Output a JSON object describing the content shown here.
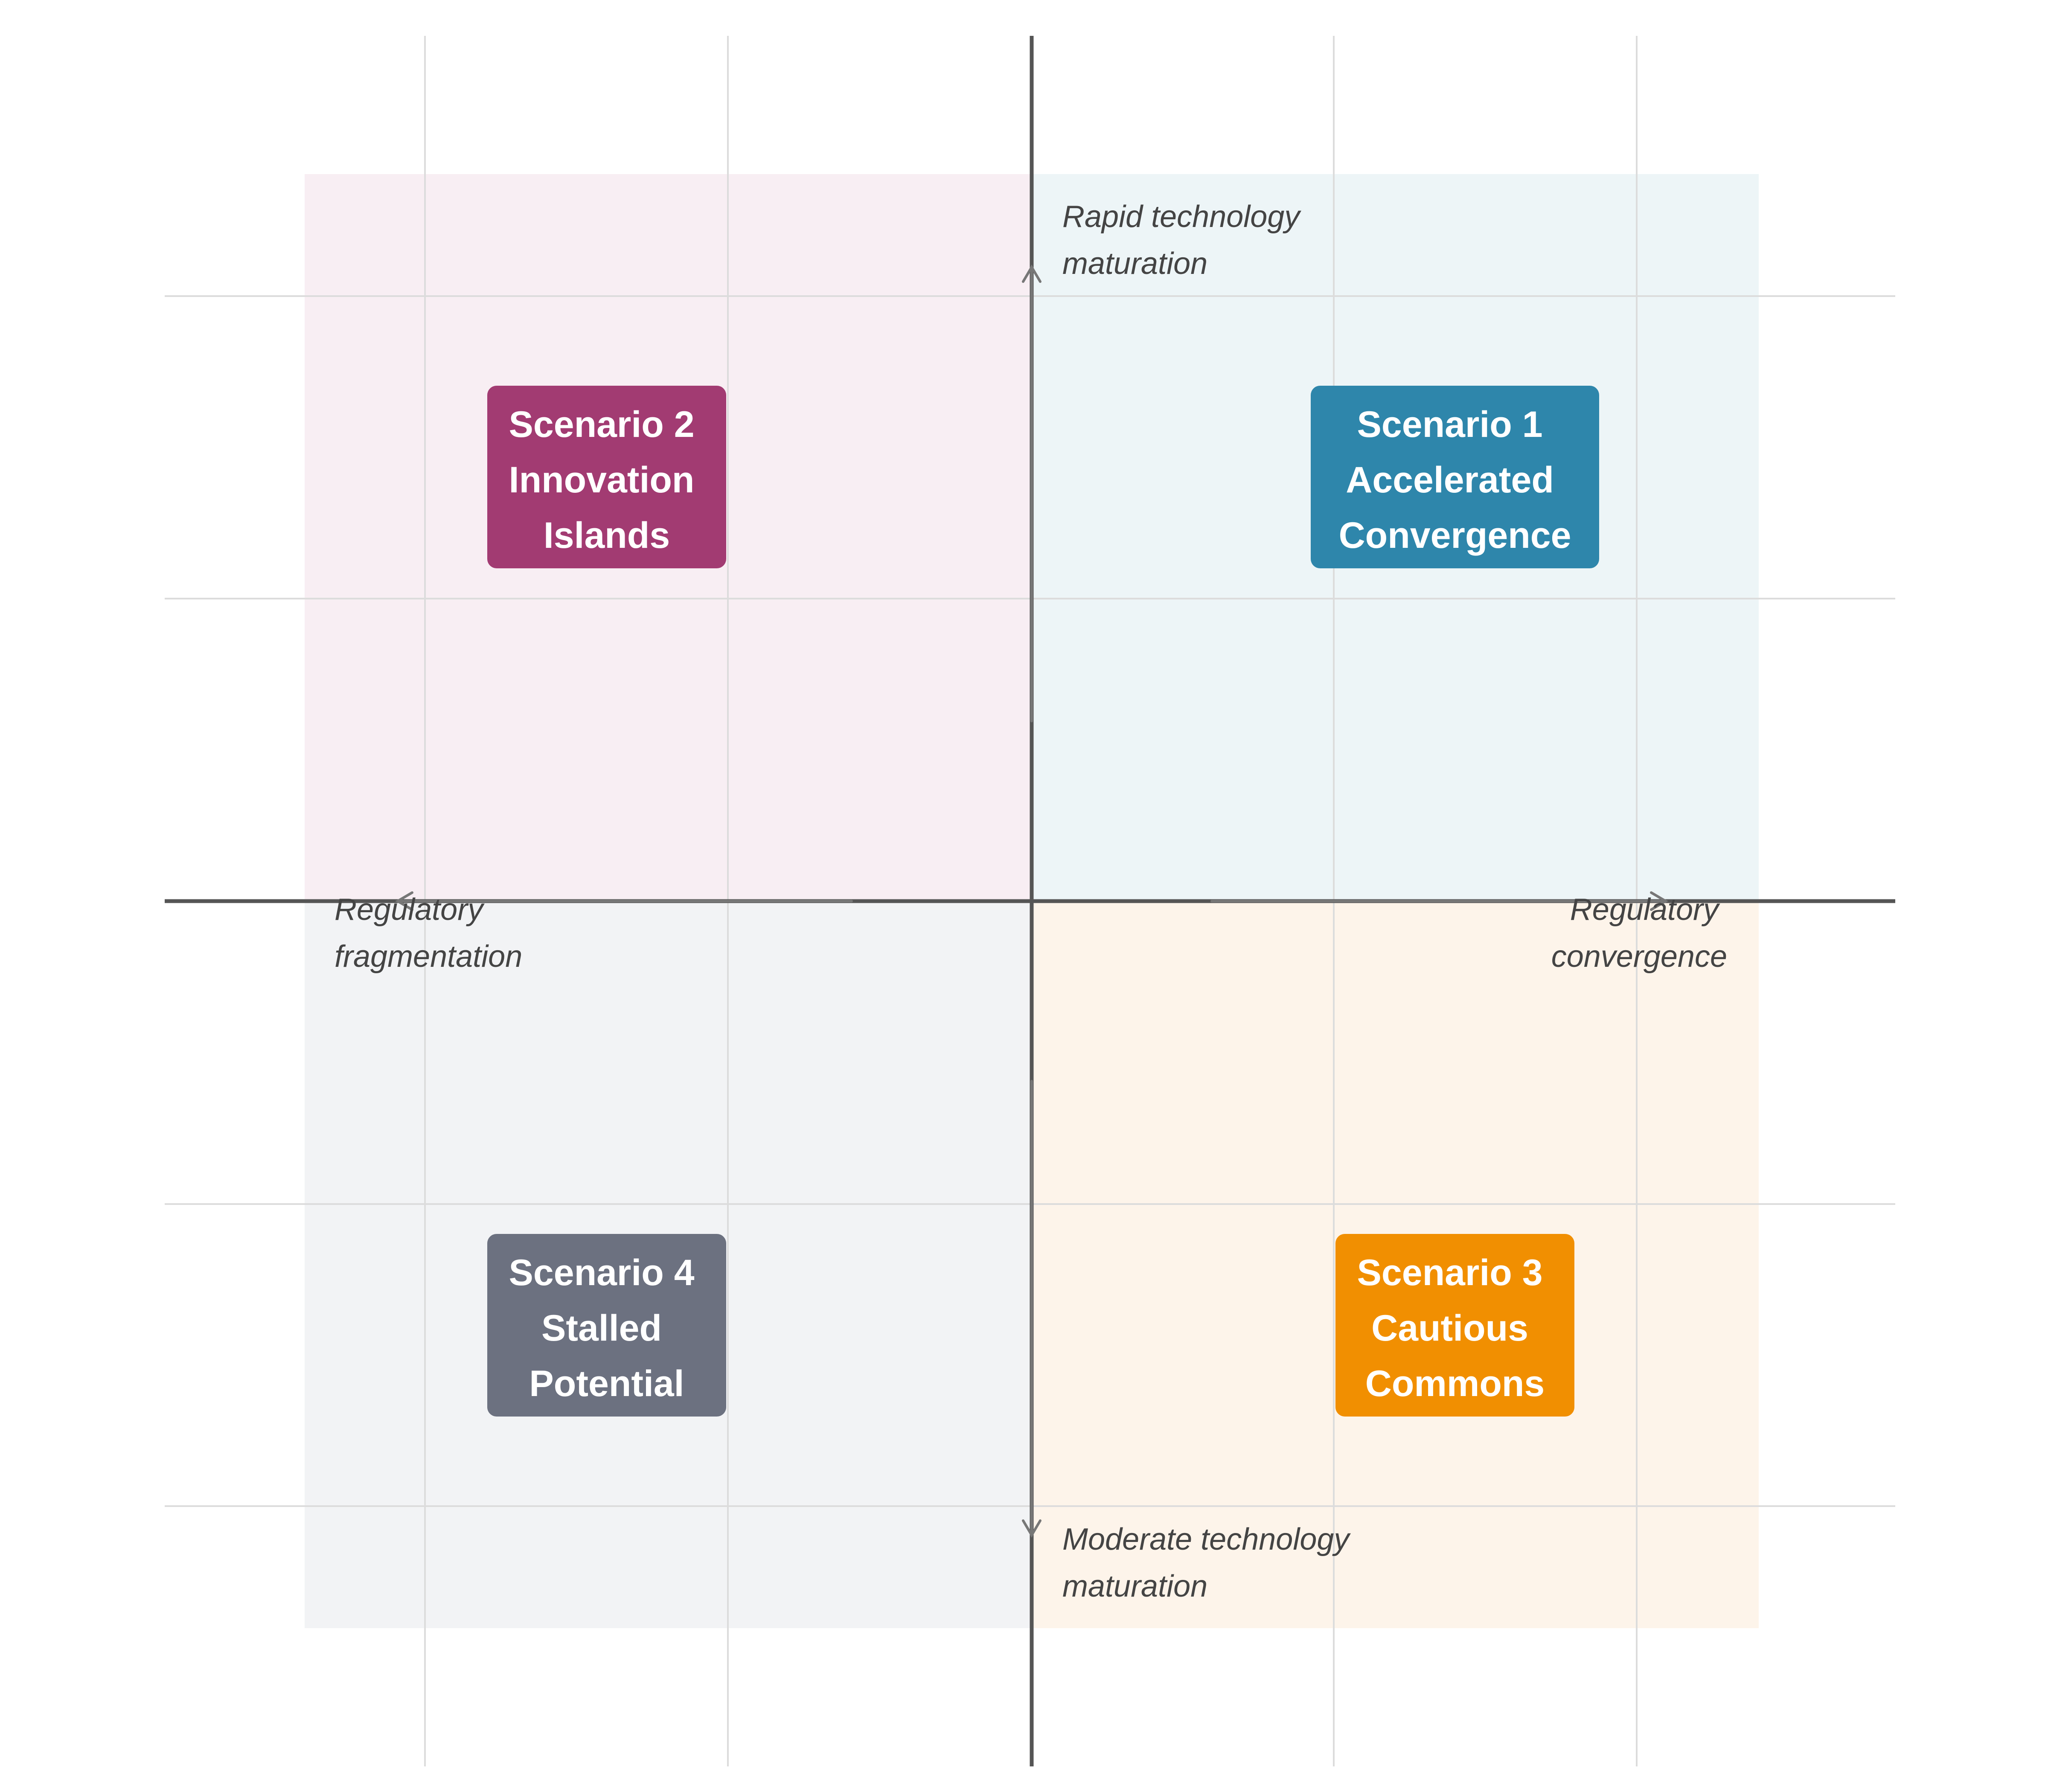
{
  "colors": {
    "grid": "#dcdcdc",
    "axis": "#555555",
    "axis_arrow": "#777777",
    "axis_label_text": "#444444",
    "scenario_text": "#ffffff"
  },
  "quadrants": [
    {
      "id": "top-left",
      "fill": "#f8eef3"
    },
    {
      "id": "top-right",
      "fill": "#edf5f7"
    },
    {
      "id": "bottom-left",
      "fill": "#f2f3f5"
    },
    {
      "id": "bottom-right",
      "fill": "#fdf4ea"
    }
  ],
  "scenarios": [
    {
      "id": "scenario-1",
      "color": "#2e86ab",
      "lines": [
        "Scenario 1",
        "Accelerated",
        "Convergence"
      ]
    },
    {
      "id": "scenario-2",
      "color": "#a23b72",
      "lines": [
        "Scenario 2",
        "Innovation",
        "Islands"
      ]
    },
    {
      "id": "scenario-3",
      "color": "#f18f01",
      "lines": [
        "Scenario 3",
        "Cautious",
        "Commons"
      ]
    },
    {
      "id": "scenario-4",
      "color": "#6c7180",
      "lines": [
        "Scenario 4",
        "Stalled",
        "Potential"
      ]
    }
  ],
  "axis_labels": {
    "top": [
      "Rapid technology",
      "maturation"
    ],
    "bottom": [
      "Moderate technology",
      "maturation"
    ],
    "left": [
      "Regulatory",
      "fragmentation"
    ],
    "right": [
      "Regulatory",
      "convergence"
    ]
  }
}
